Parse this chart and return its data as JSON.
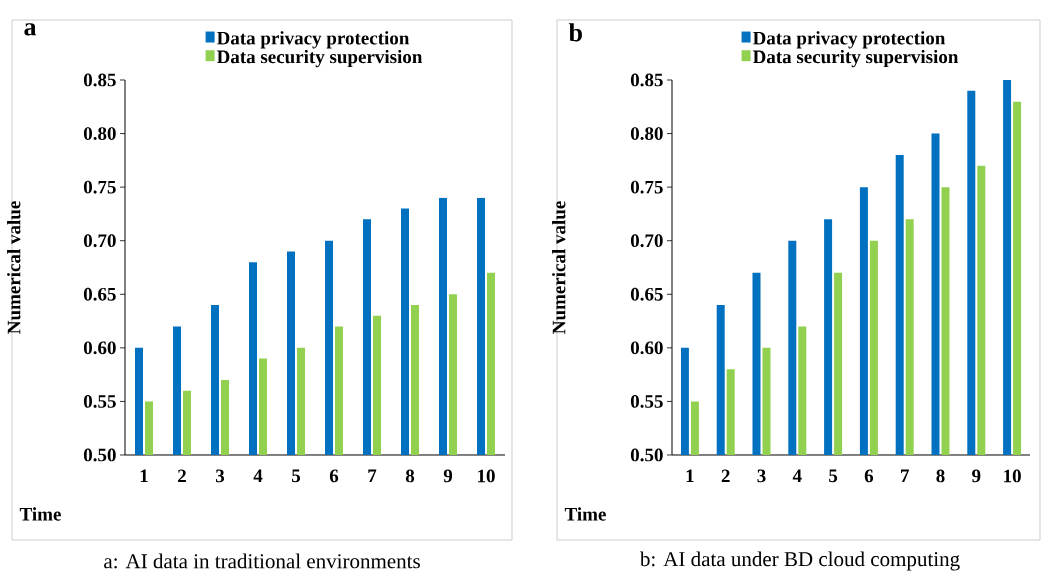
{
  "chart_data": [
    {
      "type": "bar",
      "title": "a",
      "xlabel": "Time",
      "ylabel": "Numerical value",
      "categories": [
        "1",
        "2",
        "3",
        "4",
        "5",
        "6",
        "7",
        "8",
        "9",
        "10"
      ],
      "series": [
        {
          "name": "Data privacy protection",
          "color": "#0070c0",
          "values": [
            0.6,
            0.62,
            0.64,
            0.68,
            0.69,
            0.7,
            0.72,
            0.73,
            0.74,
            0.74
          ]
        },
        {
          "name": "Data security supervision",
          "color": "#92d050",
          "values": [
            0.55,
            0.56,
            0.57,
            0.59,
            0.6,
            0.62,
            0.63,
            0.64,
            0.65,
            0.67
          ]
        }
      ],
      "ylim": [
        0.5,
        0.85
      ],
      "yticks": [
        {
          "value": 0.5,
          "label": "0.50"
        },
        {
          "value": 0.55,
          "label": "0.55"
        },
        {
          "value": 0.6,
          "label": "0.60"
        },
        {
          "value": 0.65,
          "label": "0.65"
        },
        {
          "value": 0.7,
          "label": "0.70"
        },
        {
          "value": 0.75,
          "label": "0.75"
        },
        {
          "value": 0.8,
          "label": "0.80"
        },
        {
          "value": 0.85,
          "label": "0.85"
        }
      ],
      "legend": "top",
      "annotations": [
        "a: AI data in traditional environments"
      ]
    },
    {
      "type": "bar",
      "title": "b",
      "xlabel": "Time",
      "ylabel": "Numerical value",
      "categories": [
        "1",
        "2",
        "3",
        "4",
        "5",
        "6",
        "7",
        "8",
        "9",
        "10"
      ],
      "series": [
        {
          "name": "Data privacy protection",
          "color": "#0070c0",
          "values": [
            0.6,
            0.64,
            0.67,
            0.7,
            0.72,
            0.75,
            0.78,
            0.8,
            0.84,
            0.85
          ]
        },
        {
          "name": "Data security supervision",
          "color": "#92d050",
          "values": [
            0.55,
            0.58,
            0.6,
            0.62,
            0.67,
            0.7,
            0.72,
            0.75,
            0.77,
            0.83
          ]
        }
      ],
      "ylim": [
        0.5,
        0.85
      ],
      "yticks": [
        {
          "value": 0.5,
          "label": "0.50"
        },
        {
          "value": 0.55,
          "label": "0.55"
        },
        {
          "value": 0.6,
          "label": "0.60"
        },
        {
          "value": 0.65,
          "label": "0.65"
        },
        {
          "value": 0.7,
          "label": "0.70"
        },
        {
          "value": 0.75,
          "label": "0.75"
        },
        {
          "value": 0.8,
          "label": "0.80"
        },
        {
          "value": 0.85,
          "label": "0.85"
        }
      ],
      "legend": "top",
      "annotations": [
        "b: AI data under BD cloud computing"
      ]
    }
  ]
}
